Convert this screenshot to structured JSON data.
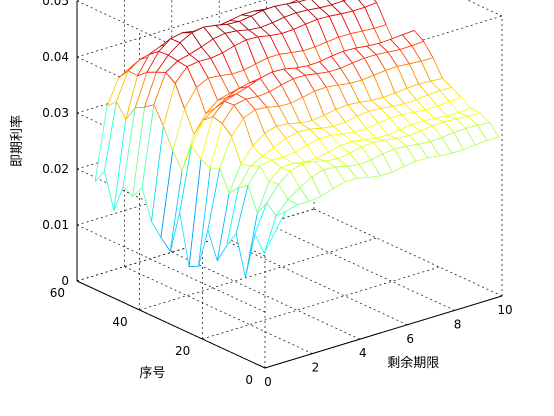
{
  "chart_data": {
    "type": "surface",
    "title": "",
    "xlabel": "剩余期限",
    "ylabel": "序号",
    "zlabel": "即期利率",
    "xlim": [
      0,
      10
    ],
    "ylim": [
      0,
      60
    ],
    "zlim": [
      0,
      0.05
    ],
    "x_ticks": [
      "0",
      "2",
      "4",
      "6",
      "8",
      "10"
    ],
    "y_ticks": [
      "0",
      "20",
      "40",
      "60"
    ],
    "z_ticks": [
      "0",
      "0.01",
      "0.02",
      "0.03",
      "0.04",
      "0.05"
    ],
    "grid": true,
    "colormap": "jet",
    "x": [
      0.5,
      1,
      1.5,
      2,
      2.5,
      3,
      3.5,
      4,
      4.5,
      5,
      5.5,
      6,
      6.5,
      7,
      7.5,
      8,
      8.5,
      9,
      9.5,
      10
    ],
    "y": [
      1,
      4,
      7,
      10,
      13,
      16,
      19,
      22,
      25,
      28,
      31,
      34,
      37,
      40,
      43,
      46,
      49,
      52,
      55,
      58
    ],
    "level_start": [
      0.022,
      0.018,
      0.022,
      0.014,
      0.02,
      0.016,
      0.013,
      0.019,
      0.012,
      0.01,
      0.018,
      0.011,
      0.014,
      0.016,
      0.02,
      0.017,
      0.019,
      0.015,
      0.021,
      0.017
    ],
    "level_end": [
      0.028,
      0.03,
      0.031,
      0.031,
      0.032,
      0.033,
      0.034,
      0.037,
      0.039,
      0.04,
      0.038,
      0.036,
      0.039,
      0.042,
      0.043,
      0.044,
      0.043,
      0.041,
      0.039,
      0.038
    ],
    "rise_scale": 1.8
  }
}
